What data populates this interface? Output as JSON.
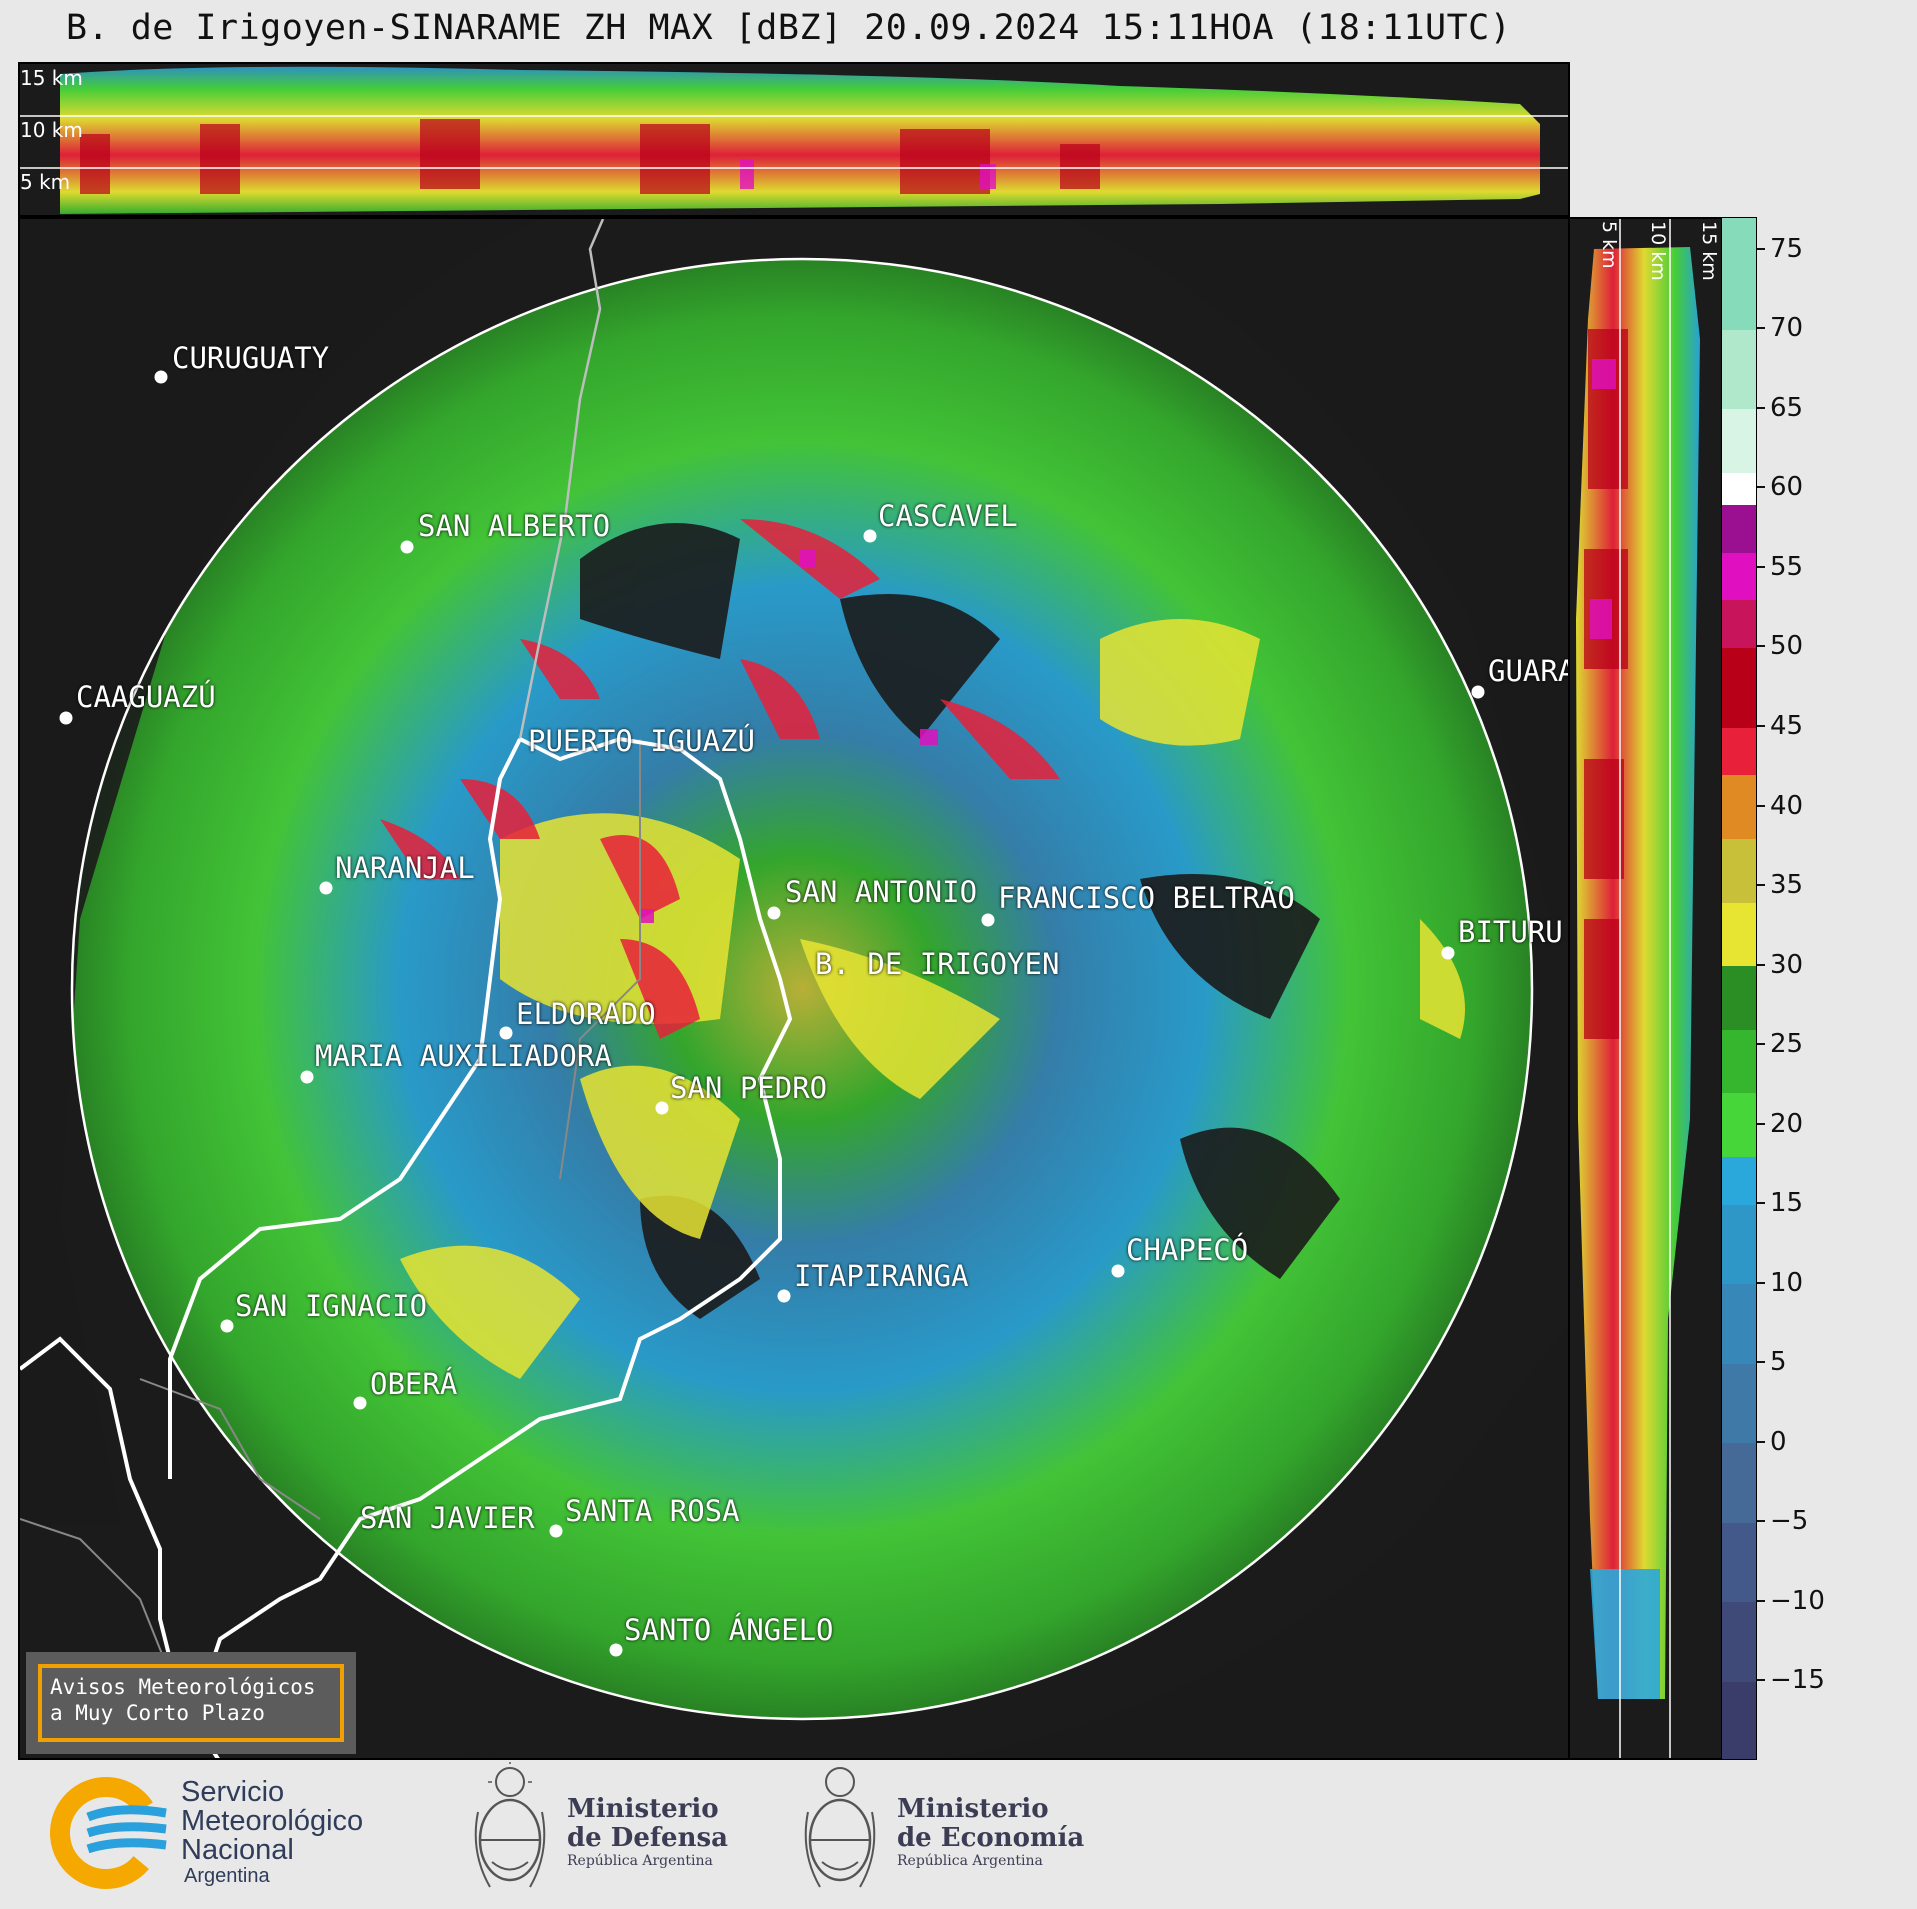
{
  "header": {
    "title": "B. de Irigoyen-SINARAME ZH MAX [dBZ] 20.09.2024 15:11HOA (18:11UTC)"
  },
  "top_profile": {
    "height_labels": [
      "15 km",
      "10 km",
      "5 km"
    ]
  },
  "side_profile": {
    "height_labels": [
      "5 km",
      "10 km",
      "15 km"
    ]
  },
  "map": {
    "cities": [
      {
        "name": "CURUGUATY"
      },
      {
        "name": "SAN ALBERTO"
      },
      {
        "name": "CAAGUAZÚ"
      },
      {
        "name": "CASCAVEL"
      },
      {
        "name": "GUARA"
      },
      {
        "name": "PUERTO IGUAZÚ"
      },
      {
        "name": "NARANJAL"
      },
      {
        "name": "SAN ANTONIO"
      },
      {
        "name": "FRANCISCO BELTRÃO"
      },
      {
        "name": "BITURU"
      },
      {
        "name": "B. DE IRIGOYEN"
      },
      {
        "name": "ELDORADO"
      },
      {
        "name": "MARIA AUXILIADORA"
      },
      {
        "name": "SAN PEDRO"
      },
      {
        "name": "CHAPECÓ"
      },
      {
        "name": "ITAPIRANGA"
      },
      {
        "name": "SAN IGNACIO"
      },
      {
        "name": "OBERÁ"
      },
      {
        "name": "SAN JAVIER"
      },
      {
        "name": "SANTA ROSA"
      },
      {
        "name": "SANTO ÁNGELO"
      }
    ]
  },
  "warning": {
    "line1": "Avisos Meteorológicos",
    "line2": "a Muy Corto Plazo"
  },
  "legend": {
    "unit": "dBZ",
    "ticks": [
      "75",
      "70",
      "65",
      "60",
      "55",
      "50",
      "45",
      "40",
      "35",
      "30",
      "25",
      "20",
      "15",
      "10",
      "5",
      "0",
      "−5",
      "−10",
      "−15"
    ],
    "range": [
      -20,
      77
    ],
    "color_bands": [
      {
        "from": -20,
        "to": -15,
        "color": "#3a3d6a"
      },
      {
        "from": -15,
        "to": -10,
        "color": "#3f4a78"
      },
      {
        "from": -10,
        "to": -5,
        "color": "#43598a"
      },
      {
        "from": -5,
        "to": 0,
        "color": "#456a98"
      },
      {
        "from": 0,
        "to": 5,
        "color": "#3f79a8"
      },
      {
        "from": 5,
        "to": 10,
        "color": "#3788b8"
      },
      {
        "from": 10,
        "to": 15,
        "color": "#2e97c8"
      },
      {
        "from": 15,
        "to": 18,
        "color": "#2aa8dc"
      },
      {
        "from": 18,
        "to": 22,
        "color": "#47d63a"
      },
      {
        "from": 22,
        "to": 26,
        "color": "#36b52e"
      },
      {
        "from": 26,
        "to": 30,
        "color": "#2a8e25"
      },
      {
        "from": 30,
        "to": 34,
        "color": "#e8e432"
      },
      {
        "from": 34,
        "to": 38,
        "color": "#c9c03a"
      },
      {
        "from": 38,
        "to": 42,
        "color": "#e08a24"
      },
      {
        "from": 42,
        "to": 45,
        "color": "#e8203a"
      },
      {
        "from": 45,
        "to": 50,
        "color": "#b80018"
      },
      {
        "from": 50,
        "to": 53,
        "color": "#c8145a"
      },
      {
        "from": 53,
        "to": 56,
        "color": "#e010c0"
      },
      {
        "from": 56,
        "to": 59,
        "color": "#9a1090"
      },
      {
        "from": 59,
        "to": 61,
        "color": "#ffffff"
      },
      {
        "from": 61,
        "to": 65,
        "color": "#d8f4e4"
      },
      {
        "from": 65,
        "to": 70,
        "color": "#b0e8cc"
      },
      {
        "from": 70,
        "to": 77,
        "color": "#86dcba"
      }
    ]
  },
  "footer": {
    "snm": {
      "line1": "Servicio",
      "line2": "Meteorológico",
      "line3": "Nacional",
      "country": "Argentina"
    },
    "defensa": {
      "line1": "Ministerio",
      "line2": "de Defensa",
      "sub": "República Argentina"
    },
    "economia": {
      "line1": "Ministerio",
      "line2": "de Economía",
      "sub": "República Argentina"
    }
  }
}
